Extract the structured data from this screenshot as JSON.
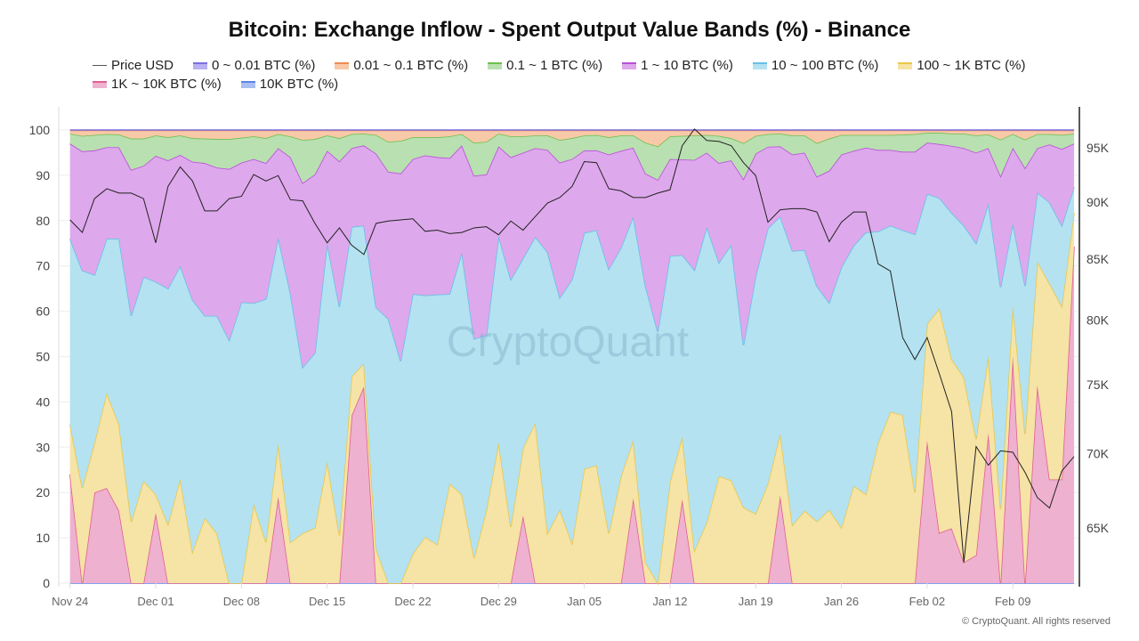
{
  "title": "Bitcoin: Exchange Inflow - Spent Output Value Bands (%) - Binance",
  "watermark": "CryptoQuant",
  "copyright": "© CryptoQuant. All rights reserved",
  "legend": [
    {
      "label": "Price USD",
      "color": "#555555",
      "fill": "#555555"
    },
    {
      "label": "0 ~ 0.01 BTC (%)",
      "color": "#7b6fe0",
      "fill": "#b8b0f2"
    },
    {
      "label": "0.01 ~ 0.1 BTC (%)",
      "color": "#f08a50",
      "fill": "#f8c9a8"
    },
    {
      "label": "0.1 ~ 1 BTC (%)",
      "color": "#6cbf50",
      "fill": "#b9e0b0"
    },
    {
      "label": "1 ~ 10 BTC (%)",
      "color": "#b84fd8",
      "fill": "#dea8ec"
    },
    {
      "label": "10 ~ 100 BTC (%)",
      "color": "#66c0e6",
      "fill": "#b4e2f0"
    },
    {
      "label": "100 ~ 1K BTC (%)",
      "color": "#e8c84a",
      "fill": "#f6e3a6"
    },
    {
      "label": "1K ~ 10K BTC (%)",
      "color": "#e0608f",
      "fill": "#eeb1cf"
    },
    {
      "label": "10K BTC (%)",
      "color": "#5b84e6",
      "fill": "#a9bff2"
    }
  ],
  "chart_data": {
    "type": "area",
    "stacked": true,
    "title": "Bitcoin: Exchange Inflow - Spent Output Value Bands (%) - Binance",
    "x_start": "2025-11-24",
    "x_interval": "1 day",
    "x_tick_labels": [
      "Nov 24",
      "Dec 01",
      "Dec 08",
      "Dec 15",
      "Dec 22",
      "Dec 29",
      "Jan 05",
      "Jan 12",
      "Jan 19",
      "Jan 26",
      "Feb 02",
      "Feb 09"
    ],
    "y_left": {
      "ticks": [
        0,
        10,
        20,
        30,
        40,
        50,
        60,
        70,
        80,
        90,
        100
      ],
      "range": [
        0,
        105
      ]
    },
    "y_right": {
      "scale": "log",
      "ticks": [
        "65K",
        "70K",
        "75K",
        "80K",
        "85K",
        "90K",
        "95K"
      ],
      "tick_values": [
        65,
        70,
        75,
        80,
        85,
        90,
        95
      ],
      "range": [
        61.5,
        99
      ]
    },
    "grid": true,
    "legend_position": "top",
    "series": [
      {
        "name": "10K BTC (%)",
        "values": [
          0,
          0,
          0,
          0,
          0,
          0,
          0,
          0,
          0,
          0,
          0,
          0,
          0,
          0,
          0,
          0,
          0,
          0,
          0,
          0,
          0,
          0,
          0,
          0,
          0,
          0,
          0,
          0,
          0,
          0,
          0,
          0,
          0,
          0,
          0,
          0,
          0,
          0,
          0,
          0,
          0,
          0,
          0,
          0,
          0,
          0,
          0,
          0,
          0,
          0,
          0,
          0,
          0,
          0,
          0,
          0,
          0,
          0,
          0,
          0,
          0,
          0,
          0,
          0,
          0,
          0,
          0,
          0,
          0,
          0,
          0,
          0,
          0,
          0,
          0,
          0,
          0,
          0,
          0,
          0,
          0,
          0,
          0
        ]
      },
      {
        "name": "1K ~ 10K BTC (%)",
        "values": [
          24,
          0,
          20,
          21,
          16,
          0,
          0,
          15.5,
          0,
          0,
          0,
          0,
          0,
          0,
          0,
          0,
          0,
          19,
          0,
          0,
          0,
          0,
          0,
          37,
          43.4,
          0,
          0,
          0,
          0,
          0,
          0,
          0,
          0,
          0,
          0,
          0,
          0,
          14.9,
          0,
          0,
          0,
          0,
          0,
          0,
          0,
          0,
          18.7,
          0,
          0,
          0,
          18.5,
          0,
          0,
          0,
          0,
          0,
          0,
          0,
          19.3,
          0,
          0,
          0,
          0,
          0,
          0,
          0,
          0,
          0,
          0,
          0,
          31.4,
          11.1,
          12.1,
          4.6,
          6.2,
          33.1,
          0,
          50.1,
          0,
          43.7,
          22.9,
          22.9,
          74.3
        ]
      },
      {
        "name": "100 ~ 1K BTC (%)",
        "values": [
          11,
          21,
          11,
          21,
          19,
          13.5,
          22.6,
          4.1,
          13,
          23,
          6.9,
          14.4,
          11,
          0,
          0,
          17.5,
          9,
          11.8,
          9,
          11,
          12.2,
          26.8,
          10.5,
          8.6,
          5.1,
          7.5,
          0,
          0,
          6.5,
          10.2,
          8.5,
          22,
          19.6,
          5.6,
          16,
          31,
          12.4,
          14.9,
          35.4,
          11,
          16.2,
          8.8,
          25.2,
          26,
          11,
          23.6,
          12.9,
          4.6,
          0,
          22.3,
          13.8,
          7.2,
          13.4,
          23.6,
          22.7,
          16.7,
          15.3,
          22,
          13.7,
          12.8,
          16,
          13.6,
          16.2,
          12.2,
          21.5,
          19.6,
          31,
          37.8,
          37.1,
          20,
          25.8,
          49.5,
          37.3,
          40.8,
          25.6,
          17.1,
          16.4,
          11.1,
          32.9,
          27.2,
          43.2,
          38.2,
          7.4
        ]
      },
      {
        "name": "10 ~ 100 BTC (%)",
        "values": [
          41,
          48,
          37,
          34,
          41,
          45.5,
          45,
          46.9,
          52,
          47,
          55.6,
          44.6,
          48,
          53.6,
          62,
          44.3,
          53.7,
          45.5,
          54.9,
          36.6,
          38.6,
          48.2,
          50.5,
          33,
          30.4,
          53.3,
          58.3,
          49,
          57.3,
          53.3,
          55.2,
          41.8,
          53.4,
          48.3,
          38.7,
          45.6,
          54.6,
          41.9,
          41,
          62,
          46.8,
          58.2,
          52.1,
          51.9,
          58.3,
          50.4,
          49.3,
          60.9,
          55.5,
          49.9,
          40.1,
          61.9,
          65.2,
          47.1,
          52,
          35.8,
          52.5,
          56.3,
          47.9,
          60.5,
          57.5,
          51.9,
          45.7,
          57.5,
          53,
          57.8,
          46.6,
          41.1,
          40.8,
          57,
          28.7,
          24.4,
          32.3,
          33.5,
          43.2,
          33.6,
          48.9,
          18.2,
          32.7,
          15.3,
          17.9,
          17.8,
          5.7
        ]
      },
      {
        "name": "1 ~ 10 BTC (%)",
        "values": [
          21,
          26.3,
          27.5,
          20.2,
          20.2,
          32.2,
          24.5,
          27.8,
          28.3,
          24.5,
          30.5,
          33.7,
          32.7,
          37.8,
          30.8,
          31.8,
          30,
          19.7,
          30.1,
          40.7,
          39.4,
          20.4,
          32.1,
          17.4,
          17.7,
          34,
          32.5,
          41.4,
          29.8,
          30.9,
          30.3,
          30,
          23.6,
          36,
          35.5,
          19.8,
          27,
          23.3,
          19.6,
          22.6,
          29.8,
          26.6,
          18.2,
          17.6,
          25.3,
          21.4,
          15.2,
          24.9,
          33.5,
          21.4,
          21.1,
          24.3,
          16.4,
          22,
          18.6,
          36.7,
          27,
          18,
          15.5,
          21.3,
          21.5,
          24.2,
          29.1,
          24.9,
          20.9,
          18.7,
          18,
          16.7,
          17.3,
          18.2,
          11.3,
          11.9,
          14.8,
          17.1,
          20,
          12.2,
          24.5,
          16.7,
          26,
          9.8,
          12.8,
          16.9,
          9.6
        ]
      },
      {
        "name": "0.1 ~ 1 BTC (%)",
        "values": [
          2.2,
          3.4,
          3.4,
          2.9,
          2.8,
          6.9,
          6,
          4.5,
          5.1,
          4.3,
          5.2,
          5.4,
          6.3,
          6.6,
          5.5,
          5,
          5.5,
          3.1,
          4.6,
          9.5,
          7.8,
          3.4,
          5.1,
          3.1,
          2.6,
          4.1,
          6.6,
          7.2,
          4.8,
          4,
          4.4,
          4.8,
          2.5,
          7.3,
          7.2,
          2.8,
          4.6,
          3.6,
          2.8,
          3.2,
          5,
          4.6,
          3.3,
          3.4,
          3.8,
          3.4,
          2.7,
          6.8,
          7.4,
          5,
          5.2,
          5.4,
          3.9,
          6,
          4.9,
          7.9,
          3.9,
          2.8,
          2.8,
          4.2,
          3.8,
          7.4,
          7.1,
          4.3,
          3.5,
          2.8,
          3.3,
          3.3,
          3.8,
          3.9,
          2.2,
          2.5,
          2.7,
          3.2,
          3.8,
          3,
          8.1,
          3,
          6.3,
          3.1,
          2.3,
          3.1,
          2.2
        ]
      },
      {
        "name": "0.01 ~ 0.1 BTC (%)",
        "values": [
          0.7,
          1.2,
          1,
          0.8,
          0.9,
          1.8,
          1.8,
          1.1,
          1.5,
          1.1,
          1.7,
          1.8,
          1.9,
          1.9,
          1.6,
          1.3,
          1.7,
          0.8,
          1.3,
          2.1,
          1.9,
          1.1,
          1.7,
          0.8,
          0.7,
          1,
          2.5,
          2.3,
          1.5,
          1.5,
          1.5,
          1.3,
          0.8,
          2.7,
          2.5,
          0.7,
          1.3,
          1.3,
          1.1,
          1.1,
          2.1,
          1.7,
          1.1,
          1,
          1.5,
          1.1,
          1.1,
          2.7,
          3.5,
          1.3,
          1.2,
          1.1,
          1,
          1.2,
          1.7,
          2.8,
          1.2,
          0.8,
          0.7,
          1.1,
          1.1,
          2.8,
          1.8,
          1,
          1,
          1,
          1,
          1,
          0.9,
          0.8,
          0.5,
          0.5,
          0.7,
          0.7,
          1.1,
          0.9,
          2,
          0.8,
          2,
          0.8,
          0.8,
          1,
          0.7
        ]
      },
      {
        "name": "0 ~ 0.01 BTC (%)",
        "values": [
          0.1,
          0.1,
          0.1,
          0.1,
          0.1,
          0.1,
          0.1,
          0.1,
          0.1,
          0.1,
          0.1,
          0.1,
          0.1,
          0.1,
          0.1,
          0.1,
          0.1,
          0.1,
          0.1,
          0.1,
          0.1,
          0.1,
          0.1,
          0.1,
          0.1,
          0.1,
          0.1,
          0.1,
          0.1,
          0.1,
          0.1,
          0.1,
          0.1,
          0.1,
          0.1,
          0.1,
          0.1,
          0.1,
          0.1,
          0.1,
          0.1,
          0.1,
          0.1,
          0.1,
          0.1,
          0.1,
          0.1,
          0.1,
          0.1,
          0.1,
          0.1,
          0.1,
          0.1,
          0.1,
          0.1,
          0.1,
          0.1,
          0.1,
          0.1,
          0.1,
          0.1,
          0.1,
          0.1,
          0.1,
          0.1,
          0.1,
          0.1,
          0.1,
          0.1,
          0.1,
          0.1,
          0.1,
          0.1,
          0.1,
          0.1,
          0.1,
          0.1,
          0.1,
          0.1,
          0.1,
          0.1,
          0.1,
          0.1
        ]
      }
    ],
    "price_usd_k": [
      88.4,
      87.3,
      90.3,
      91.2,
      90.8,
      90.8,
      90.3,
      86.4,
      91.4,
      93.2,
      91.9,
      89.2,
      89.2,
      90.3,
      90.5,
      92.5,
      91.9,
      92.4,
      90.2,
      90.1,
      88.1,
      86.4,
      87.7,
      86.2,
      85.4,
      88.1,
      88.3,
      88.4,
      88.5,
      87.4,
      87.5,
      87.2,
      87.3,
      87.7,
      87.8,
      87.1,
      88.3,
      87.5,
      88.7,
      89.9,
      90.4,
      91.4,
      93.7,
      93.6,
      91.2,
      91.0,
      90.4,
      90.4,
      90.8,
      91.1,
      95.2,
      96.8,
      95.7,
      95.6,
      95.2,
      93.6,
      92.4,
      88.2,
      89.3,
      89.4,
      89.4,
      89.1,
      86.5,
      88.2,
      89.1,
      89.1,
      84.6,
      84.0,
      78.6,
      76.9,
      78.6,
      75.8,
      73.0,
      62.8,
      70.5,
      69.2,
      70.2,
      70.1,
      68.7,
      67.0,
      66.3,
      68.8,
      69.8
    ]
  }
}
